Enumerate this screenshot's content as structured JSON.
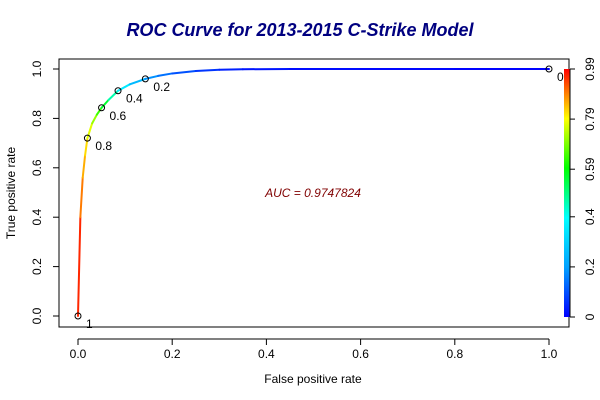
{
  "chart_data": {
    "type": "line",
    "title": "ROC Curve for 2013-2015 C-Strike Model",
    "xlabel": "False positive rate",
    "ylabel": "True positive rate",
    "xlim": [
      0,
      1
    ],
    "ylim": [
      0,
      1
    ],
    "x_ticks": [
      "0.0",
      "0.2",
      "0.4",
      "0.6",
      "0.8",
      "1.0"
    ],
    "y_ticks": [
      "0.0",
      "0.2",
      "0.4",
      "0.6",
      "0.8",
      "1.0"
    ],
    "grid": false,
    "colorbar": {
      "range": [
        0,
        0.99
      ],
      "tick_labels": [
        "0",
        "0.2",
        "0.4",
        "0.59",
        "0.79",
        "0.99"
      ],
      "tick_values": [
        0,
        0.2,
        0.4,
        0.59,
        0.79,
        0.99
      ],
      "colormap": "rainbow (blue to red)"
    },
    "curve": {
      "x": [
        0,
        0.005,
        0.01,
        0.015,
        0.02,
        0.03,
        0.04,
        0.05,
        0.065,
        0.085,
        0.11,
        0.143,
        0.17,
        0.2,
        0.25,
        0.3,
        0.35,
        0.45,
        0.6,
        0.8,
        1.0
      ],
      "y": [
        0,
        0.4,
        0.56,
        0.65,
        0.72,
        0.78,
        0.815,
        0.843,
        0.875,
        0.912,
        0.938,
        0.96,
        0.972,
        0.982,
        0.992,
        0.997,
        0.999,
        1.0,
        1.0,
        1.0,
        1.0
      ],
      "cutoff": [
        1.0,
        0.92,
        0.87,
        0.84,
        0.8,
        0.74,
        0.68,
        0.6,
        0.52,
        0.4,
        0.3,
        0.2,
        0.16,
        0.12,
        0.08,
        0.05,
        0.03,
        0.02,
        0.01,
        0.005,
        0.0
      ]
    },
    "cutoff_points": [
      {
        "x": 0.0,
        "y": 0.0,
        "label": "1"
      },
      {
        "x": 0.02,
        "y": 0.72,
        "label": "0.8"
      },
      {
        "x": 0.05,
        "y": 0.843,
        "label": "0.6"
      },
      {
        "x": 0.085,
        "y": 0.912,
        "label": "0.4"
      },
      {
        "x": 0.143,
        "y": 0.96,
        "label": "0.2"
      },
      {
        "x": 1.0,
        "y": 1.0,
        "label": "0"
      }
    ],
    "annotation": "AUC = 0.9747824",
    "colors": {
      "title": "#000080",
      "annotation": "#800000",
      "axis": "#000000",
      "marker": "#000000"
    }
  }
}
